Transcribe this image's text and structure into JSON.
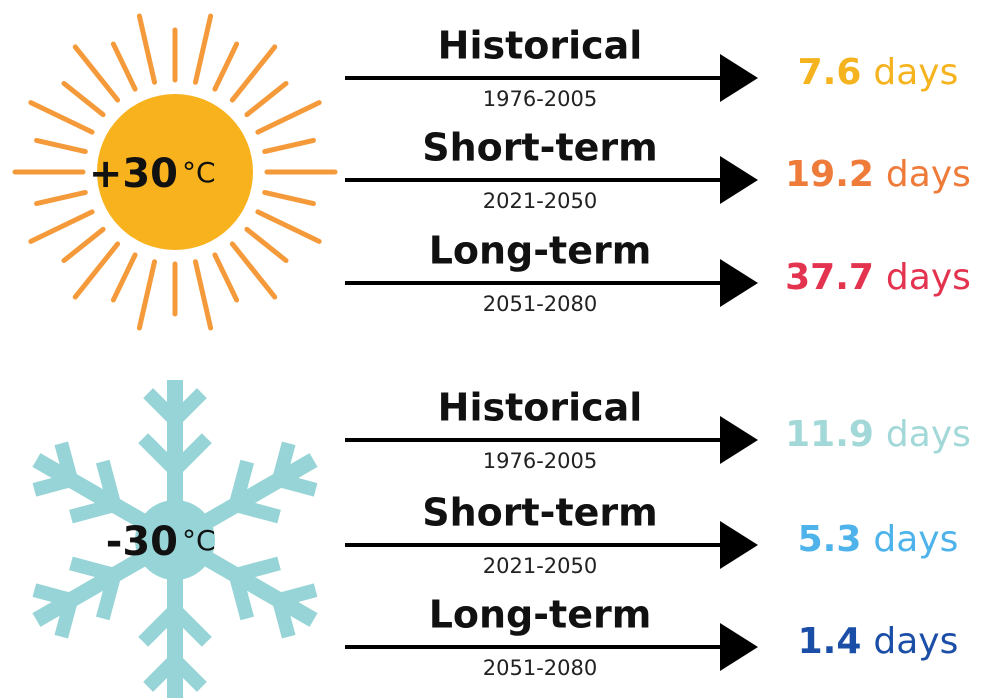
{
  "sections": [
    {
      "icon_label": "+30",
      "icon_unit": "°C",
      "rows": [
        {
          "period": "Historical",
          "years": "1976-2005",
          "value": 7.6,
          "unit": "days",
          "color": "#f5b41f"
        },
        {
          "period": "Short-term",
          "years": "2021-2050",
          "value": 19.2,
          "unit": "days",
          "color": "#ee7b3a"
        },
        {
          "period": "Long-term",
          "years": "2051-2080",
          "value": 37.7,
          "unit": "days",
          "color": "#e3334f"
        }
      ]
    },
    {
      "icon_label": "-30",
      "icon_unit": "°C",
      "rows": [
        {
          "period": "Historical",
          "years": "1976-2005",
          "value": 11.9,
          "unit": "days",
          "color": "#a3d8d8"
        },
        {
          "period": "Short-term",
          "years": "2021-2050",
          "value": 5.3,
          "unit": "days",
          "color": "#4db3ea"
        },
        {
          "period": "Long-term",
          "years": "2051-2080",
          "value": 1.4,
          "unit": "days",
          "color": "#1b4ea6"
        }
      ]
    }
  ]
}
